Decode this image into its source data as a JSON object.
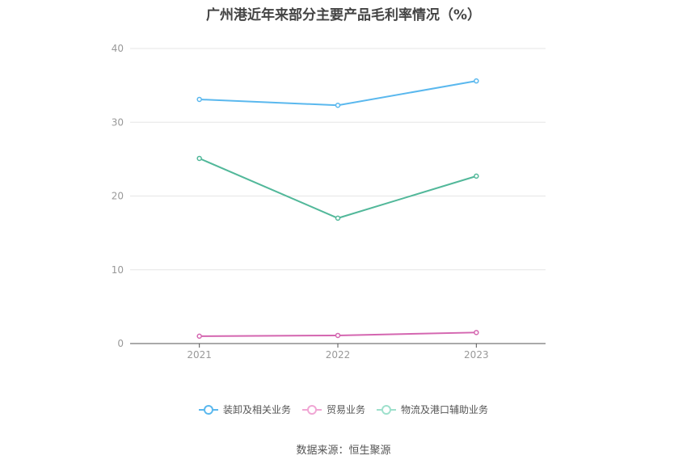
{
  "chart_data": {
    "type": "line",
    "title": "广州港近年来部分主要产品毛利率情况（%）",
    "x": [
      "2021",
      "2022",
      "2023"
    ],
    "ylim": [
      0,
      40
    ],
    "yticks": [
      "0",
      "10",
      "20",
      "30",
      "40"
    ],
    "grid": true,
    "legend_position": "bottom",
    "series": [
      {
        "name": "装卸及相关业务",
        "color": "#5ab8ee",
        "values": [
          33.1,
          32.3,
          35.6
        ]
      },
      {
        "name": "贸易业务",
        "color": "#d466b0",
        "values": [
          1.0,
          1.1,
          1.5
        ]
      },
      {
        "name": "物流及港口辅助业务",
        "color": "#52b89a",
        "values": [
          25.1,
          17.0,
          22.7
        ]
      }
    ]
  },
  "legend_colors": [
    "#5ab8ee",
    "#f0a6d4",
    "#9ee0cc"
  ],
  "source": "数据来源：恒生聚源"
}
